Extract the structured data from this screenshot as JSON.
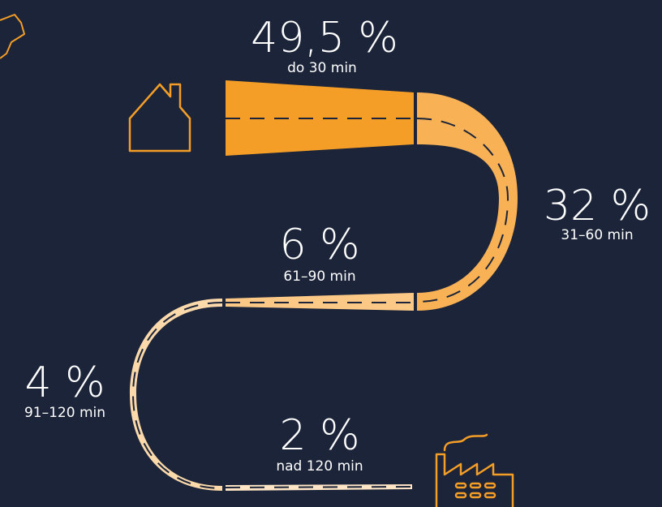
{
  "chart_data": {
    "type": "road",
    "title": "",
    "segments": [
      {
        "value": 49.5,
        "value_label": "49,5 %",
        "category": "do 30 min"
      },
      {
        "value": 32,
        "value_label": "32 %",
        "category": "31–60 min"
      },
      {
        "value": 6,
        "value_label": "6 %",
        "category": "61–90 min"
      },
      {
        "value": 4,
        "value_label": "4 %",
        "category": "91–120 min"
      },
      {
        "value": 2,
        "value_label": "2 %",
        "category": "nad 120 min"
      }
    ]
  },
  "colors": {
    "background": "#1b2439",
    "segment_1": "#f59e27",
    "segment_2": "#f8b155",
    "segment_3": "#fbc886",
    "segment_4": "#fcd9aa",
    "segment_5": "#fde4c4",
    "dash": "#1b2439",
    "icon": "#f59e27",
    "text": "#ffffff"
  },
  "icons": {
    "start": "house-icon",
    "end": "factory-icon",
    "corner": "map-fragment-icon"
  }
}
